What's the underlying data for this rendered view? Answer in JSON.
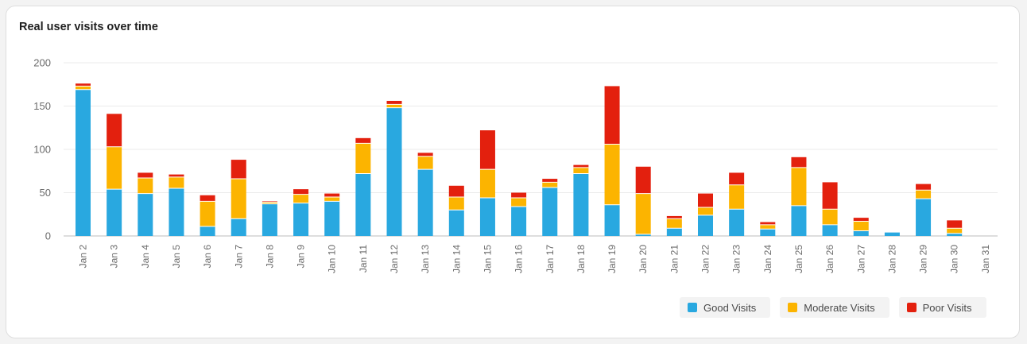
{
  "card": {
    "title": "Real user visits over time"
  },
  "colors": {
    "good": "#29a8e0",
    "moderate": "#fcb400",
    "poor": "#e3200e",
    "grid": "#ebebeb",
    "axis": "#bdbdbd"
  },
  "legend": {
    "good_label": "Good Visits",
    "moderate_label": "Moderate Visits",
    "poor_label": "Poor Visits"
  },
  "chart_data": {
    "type": "bar",
    "stacked": true,
    "title": "Real user visits over time",
    "xlabel": "",
    "ylabel": "",
    "ylim": [
      0,
      200
    ],
    "yticks": [
      0,
      50,
      100,
      150,
      200
    ],
    "categories": [
      "Jan 2",
      "Jan 3",
      "Jan 4",
      "Jan 5",
      "Jan 6",
      "Jan 7",
      "Jan 8",
      "Jan 9",
      "Jan 10",
      "Jan 11",
      "Jan 12",
      "Jan 13",
      "Jan 14",
      "Jan 15",
      "Jan 16",
      "Jan 17",
      "Jan 18",
      "Jan 19",
      "Jan 20",
      "Jan 21",
      "Jan 22",
      "Jan 23",
      "Jan 24",
      "Jan 25",
      "Jan 26",
      "Jan 27",
      "Jan 28",
      "Jan 29",
      "Jan 30",
      "Jan 31"
    ],
    "series": [
      {
        "name": "Good Visits",
        "color_key": "good",
        "values": [
          169,
          54,
          49,
          55,
          11,
          20,
          37,
          38,
          40,
          72,
          148,
          77,
          30,
          44,
          34,
          56,
          72,
          36,
          2,
          9,
          24,
          31,
          8,
          35,
          13,
          6,
          4,
          43,
          3,
          0
        ]
      },
      {
        "name": "Moderate Visits",
        "color_key": "moderate",
        "values": [
          4,
          49,
          18,
          13,
          29,
          46,
          2,
          10,
          5,
          35,
          4,
          15,
          15,
          33,
          10,
          6,
          7,
          70,
          47,
          11,
          9,
          28,
          5,
          44,
          18,
          11,
          0,
          10,
          6,
          0
        ]
      },
      {
        "name": "Poor Visits",
        "color_key": "poor",
        "values": [
          3,
          38,
          6,
          3,
          7,
          22,
          1,
          6,
          4,
          6,
          4,
          4,
          13,
          45,
          6,
          4,
          3,
          67,
          31,
          3,
          16,
          14,
          3,
          12,
          31,
          4,
          0,
          7,
          9,
          0
        ]
      }
    ],
    "legend_position": "bottom-right",
    "grid": true
  }
}
